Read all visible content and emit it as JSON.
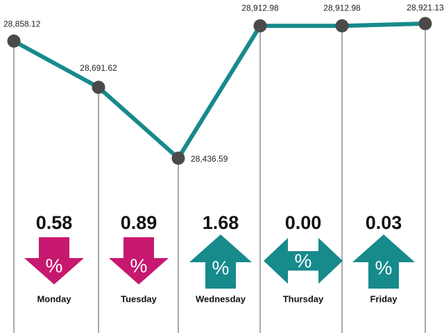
{
  "chart_data": {
    "type": "line",
    "categories": [
      null,
      null,
      null,
      null,
      null,
      null
    ],
    "values": [
      28858.12,
      28691.62,
      28436.59,
      28912.98,
      28912.98,
      28921.13
    ],
    "value_labels": [
      "28,858.12",
      "28,691.62",
      "28,436.59",
      "28,912.98",
      "28,912.98",
      "28,921.13"
    ],
    "color": "#178a8c",
    "marker_color": "#4a4a4a"
  },
  "daily_changes": {
    "days": [
      "Monday",
      "Tuesday",
      "Wednesday",
      "Thursday",
      "Friday"
    ],
    "labels": [
      "0.58",
      "0.89",
      "1.68",
      "0.00",
      "0.03"
    ],
    "directions": [
      "down",
      "down",
      "up",
      "both",
      "up"
    ],
    "symbol": "%",
    "down_color": "#c7186f",
    "up_color": "#178a8c",
    "both_color": "#178a8c"
  }
}
